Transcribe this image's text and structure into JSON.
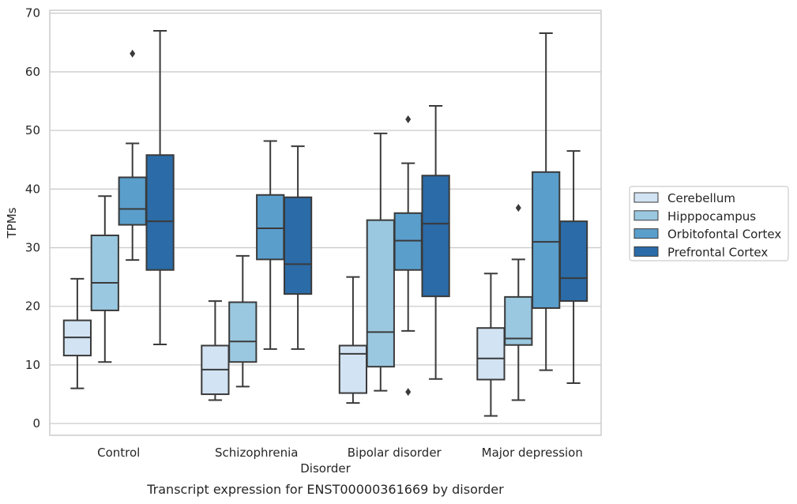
{
  "chart_data": {
    "type": "box",
    "title": "",
    "caption": "Transcript expression for ENST00000361669 by disorder",
    "xlabel": "Disorder",
    "ylabel": "TPMs",
    "ylim": [
      -2,
      70.5
    ],
    "yticks": [
      0,
      10,
      20,
      30,
      40,
      50,
      60,
      70
    ],
    "grid": "horizontal",
    "legend_position": "right",
    "categories": [
      "Control",
      "Schizophrenia",
      "Bipolar disorder",
      "Major depression"
    ],
    "series": [
      {
        "name": "Cerebellum",
        "color": "#d2e3f3",
        "boxes": [
          {
            "whislo": 6.0,
            "q1": 11.6,
            "med": 14.7,
            "q3": 17.6,
            "whishi": 24.7,
            "fliers": []
          },
          {
            "whislo": 4.0,
            "q1": 5.0,
            "med": 9.2,
            "q3": 13.3,
            "whishi": 20.9,
            "fliers": []
          },
          {
            "whislo": 3.5,
            "q1": 5.2,
            "med": 11.9,
            "q3": 13.3,
            "whishi": 25.0,
            "fliers": []
          },
          {
            "whislo": 1.3,
            "q1": 7.5,
            "med": 11.1,
            "q3": 16.3,
            "whishi": 25.6,
            "fliers": []
          }
        ]
      },
      {
        "name": "Hipppocampus",
        "color": "#9ac8e0",
        "boxes": [
          {
            "whislo": 10.5,
            "q1": 19.3,
            "med": 24.0,
            "q3": 32.1,
            "whishi": 38.8,
            "fliers": []
          },
          {
            "whislo": 6.3,
            "q1": 10.5,
            "med": 14.0,
            "q3": 20.7,
            "whishi": 28.6,
            "fliers": []
          },
          {
            "whislo": 5.6,
            "q1": 9.7,
            "med": 15.6,
            "q3": 34.7,
            "whishi": 49.5,
            "fliers": []
          },
          {
            "whislo": 4.0,
            "q1": 13.4,
            "med": 14.5,
            "q3": 21.6,
            "whishi": 28.0,
            "fliers": [
              36.8
            ]
          }
        ]
      },
      {
        "name": "Orbitofontal Cortex",
        "color": "#5a9ecc",
        "boxes": [
          {
            "whislo": 27.9,
            "q1": 33.9,
            "med": 36.6,
            "q3": 42.0,
            "whishi": 47.8,
            "fliers": [
              63.1
            ]
          },
          {
            "whislo": 12.7,
            "q1": 28.0,
            "med": 33.3,
            "q3": 39.0,
            "whishi": 48.2,
            "fliers": []
          },
          {
            "whislo": 15.8,
            "q1": 26.2,
            "med": 31.2,
            "q3": 35.9,
            "whishi": 44.4,
            "fliers": [
              51.9,
              5.4
            ]
          },
          {
            "whislo": 9.1,
            "q1": 19.7,
            "med": 31.0,
            "q3": 42.9,
            "whishi": 66.6,
            "fliers": []
          }
        ]
      },
      {
        "name": "Prefrontal Cortex",
        "color": "#2b6ba7",
        "boxes": [
          {
            "whislo": 13.5,
            "q1": 26.2,
            "med": 34.5,
            "q3": 45.8,
            "whishi": 67.0,
            "fliers": []
          },
          {
            "whislo": 12.7,
            "q1": 22.1,
            "med": 27.2,
            "q3": 38.6,
            "whishi": 47.3,
            "fliers": []
          },
          {
            "whislo": 7.6,
            "q1": 21.7,
            "med": 34.1,
            "q3": 42.3,
            "whishi": 54.2,
            "fliers": []
          },
          {
            "whislo": 6.9,
            "q1": 20.9,
            "med": 24.8,
            "q3": 34.5,
            "whishi": 46.5,
            "fliers": []
          }
        ]
      }
    ]
  }
}
